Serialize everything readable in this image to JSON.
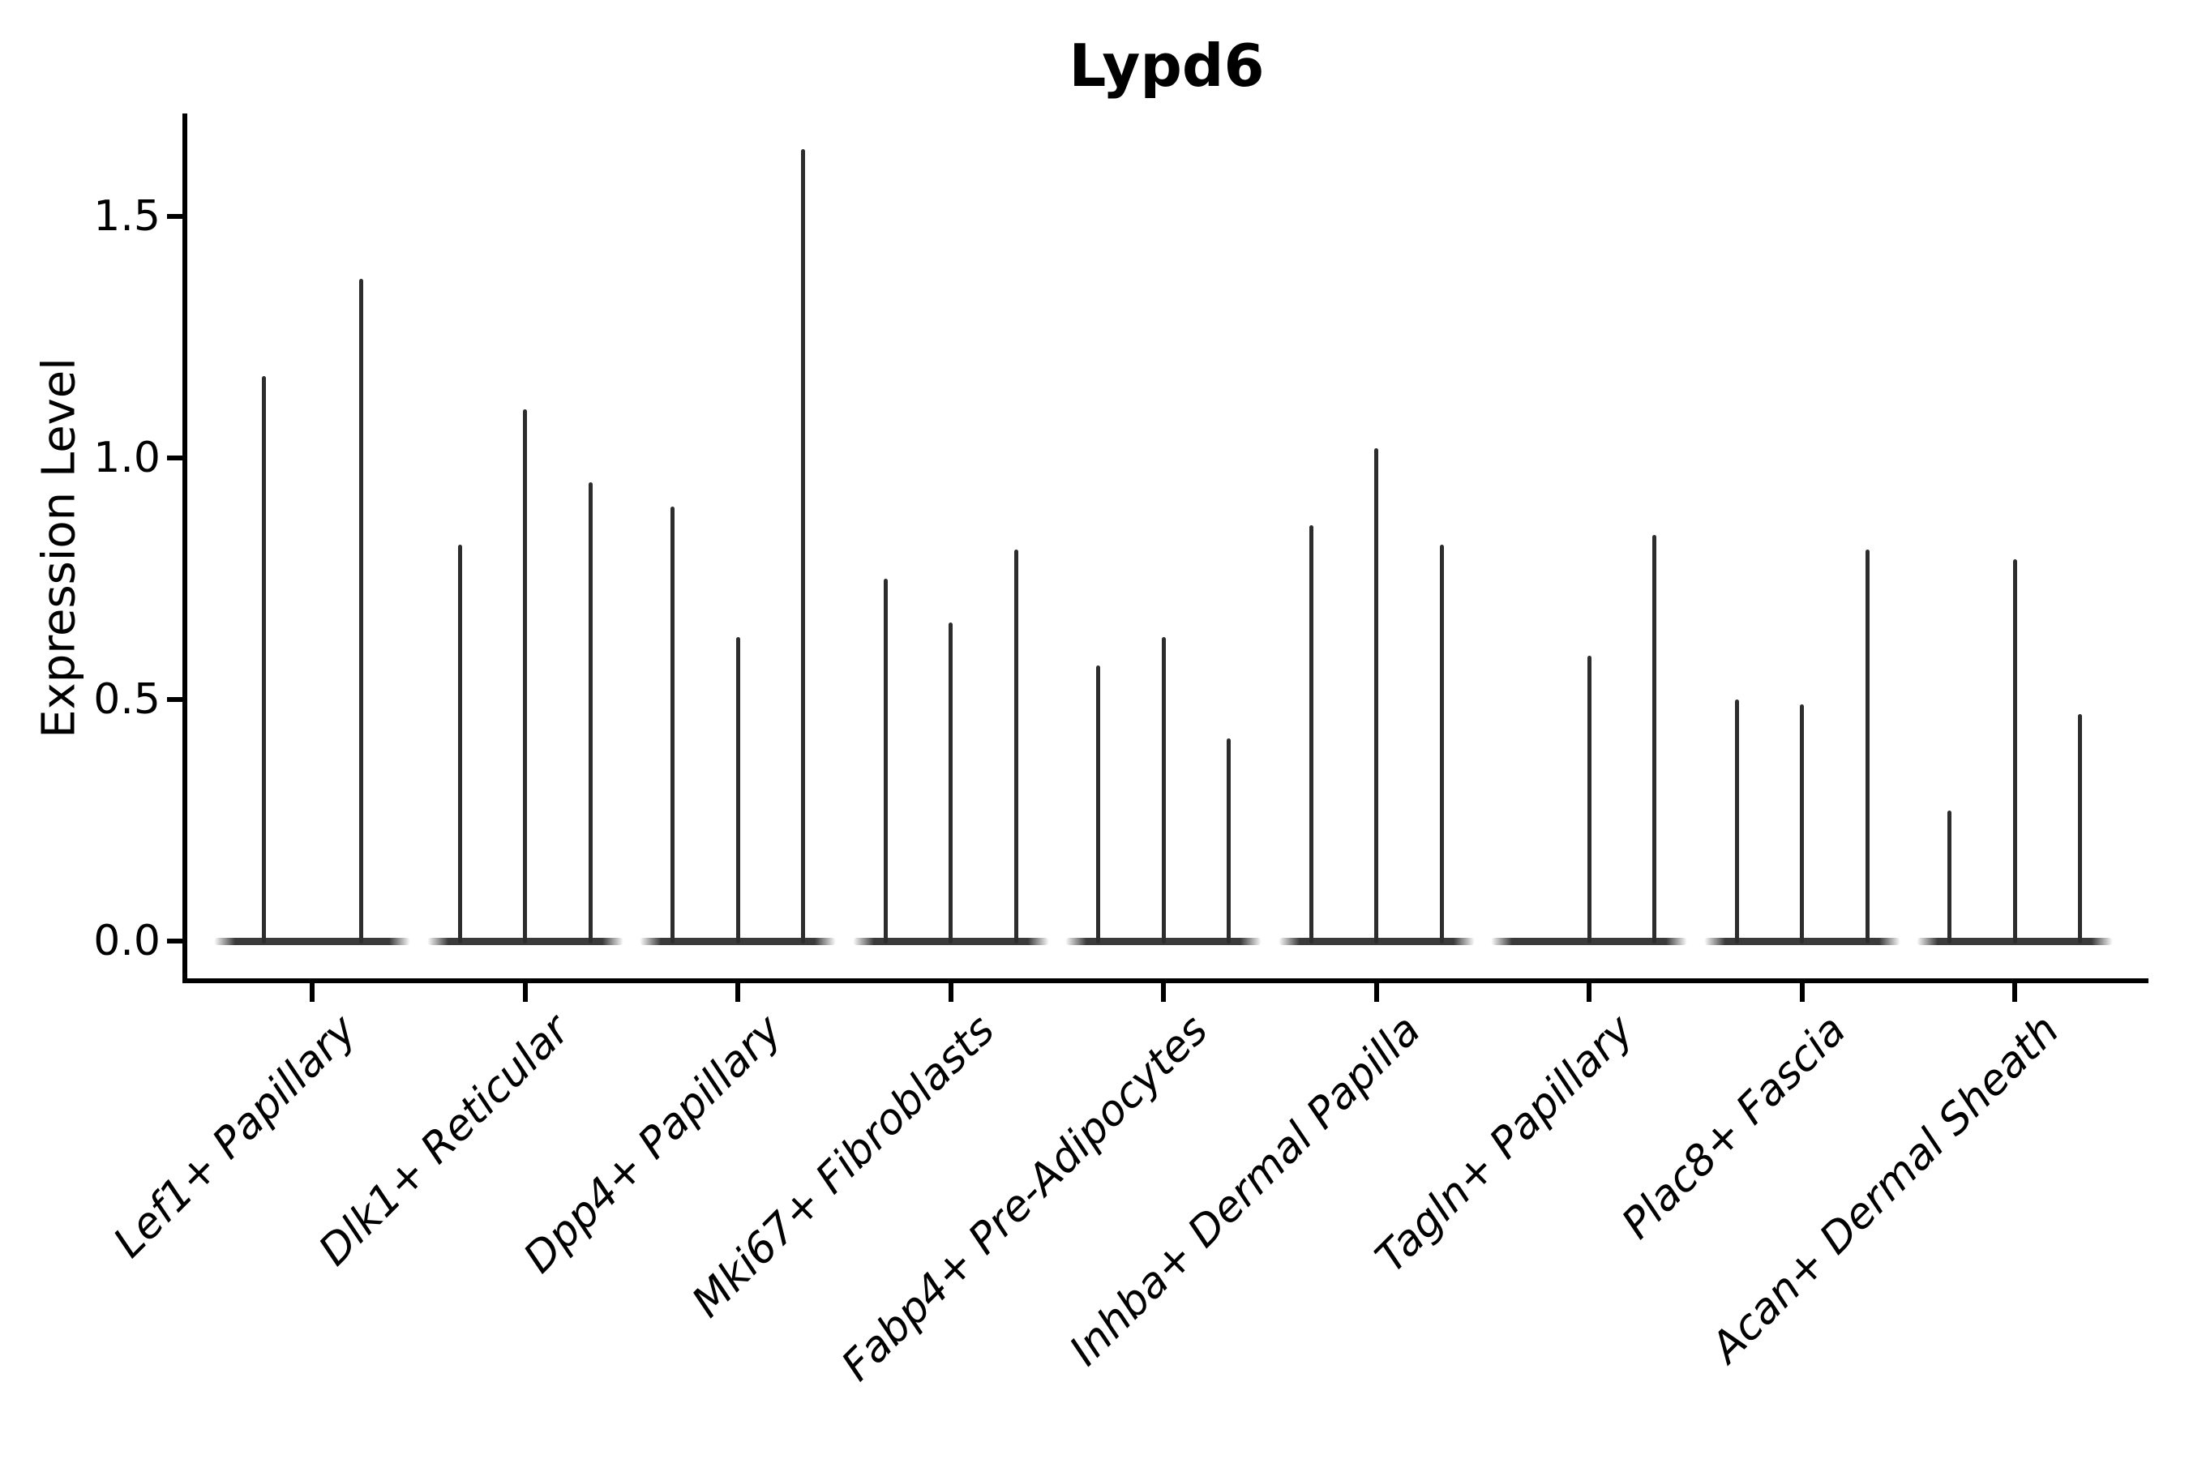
{
  "figure": {
    "title": "Lypd6",
    "ylabel": "Expression Level"
  },
  "chart_data": {
    "type": "violin",
    "title": "Lypd6",
    "xlabel": "",
    "ylabel": "Expression Level",
    "ytick_labels": [
      "0.0",
      "0.5",
      "1.0",
      "1.5"
    ],
    "ytick_values": [
      0.0,
      0.5,
      1.0,
      1.5
    ],
    "ylim": [
      -0.08,
      1.71
    ],
    "grid": false,
    "legend": null,
    "style_note": "very thin black spike-shaped violins sitting on a flat dark base at y=0; left and bottom spines only; x tick labels rotated 45deg, italic, right-anchored",
    "categories": [
      "Lef1+ Papillary",
      "Dlk1+ Reticular",
      "Dpp4+ Papillary",
      "Mki67+ Fibroblasts",
      "Fabp4+ Pre-Adipocytes",
      "Inhba+ Dermal Papilla",
      "Tagln+ Papillary",
      "Plac8+ Fascia",
      "Acan+ Dermal Sheath"
    ],
    "violins_per_category_max_expression": [
      [
        1.17,
        1.37
      ],
      [
        0.82,
        1.1,
        0.95
      ],
      [
        0.9,
        0.63,
        1.64
      ],
      [
        0.75,
        0.66,
        0.81
      ],
      [
        0.57,
        0.63,
        0.42
      ],
      [
        0.86,
        1.02,
        0.82
      ],
      [
        0.0,
        0.59,
        0.84
      ],
      [
        0.5,
        0.49,
        0.81
      ],
      [
        0.27,
        0.79,
        0.47
      ]
    ],
    "colors": {
      "spike": "#2d2d2d",
      "base": "#3a3a3a",
      "axis": "#000000",
      "text": "#000000",
      "background": "#ffffff"
    }
  }
}
